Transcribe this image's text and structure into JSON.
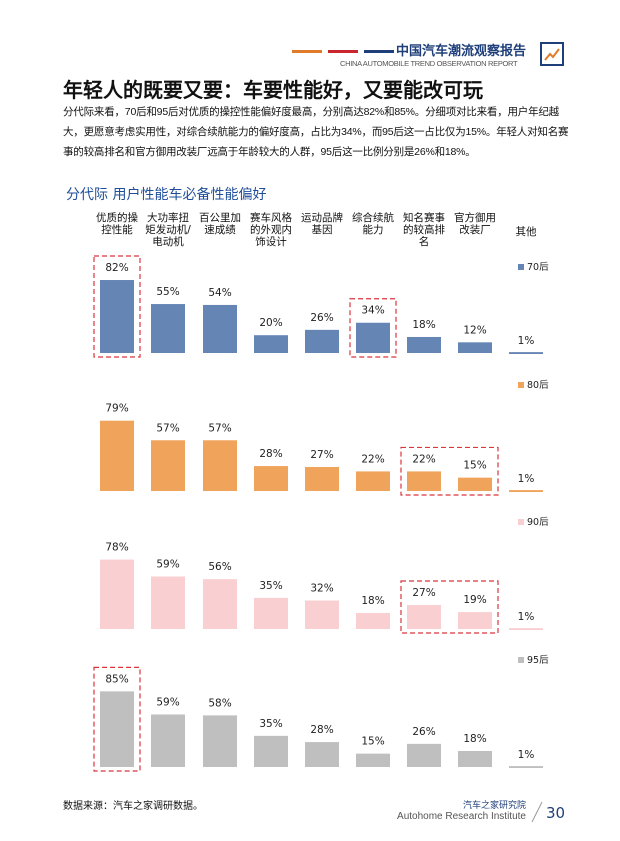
{
  "header": {
    "brand_cn": "中国汽车潮流观察报告",
    "brand_en": "CHINA AUTOMOBILE TREND OBSERVATION REPORT",
    "stripe_colors": [
      "#e07b2a",
      "#c9262e",
      "#1f3f7a"
    ]
  },
  "title": "年轻人的既要又要：车要性能好，又要能改可玩",
  "intro": "分代际来看，70后和95后对优质的操控性能偏好度最高，分别高达82%和85%。分细项对比来看，用户年纪越大，更愿意考虑实用性，对综合续航能力的偏好度高，占比为34%，而95后这一占比仅为15%。年轻人对知名赛事的较高排名和官方御用改装厂远高于年龄较大的人群，95后这一比例分别是26%和18%。",
  "subtitle": "分代际  用户性能车必备性能偏好",
  "chart_data": {
    "type": "bar",
    "categories": [
      "优质的操控性能",
      "大功率扭矩发动机/电动机",
      "百公里加速成绩",
      "赛车风格的外观内饰设计",
      "运动品牌基因",
      "综合续航能力",
      "知名赛事的较高排名",
      "官方御用改装厂",
      "其他"
    ],
    "unit": "%",
    "ylim": [
      0,
      100
    ],
    "grid": false,
    "legend": "right",
    "series": [
      {
        "name": "70后",
        "color": "#6585b5",
        "values": [
          82,
          55,
          54,
          20,
          26,
          34,
          18,
          12,
          1
        ],
        "highlighted": [
          0,
          5
        ]
      },
      {
        "name": "80后",
        "color": "#f0a35a",
        "values": [
          79,
          57,
          57,
          28,
          27,
          22,
          22,
          15,
          1
        ],
        "highlighted": [
          6,
          7
        ]
      },
      {
        "name": "90后",
        "color": "#f9cfd1",
        "values": [
          78,
          59,
          56,
          35,
          32,
          18,
          27,
          19,
          1
        ],
        "highlighted": [
          6,
          7
        ]
      },
      {
        "name": "95后",
        "color": "#bfbfbf",
        "values": [
          85,
          59,
          58,
          35,
          28,
          15,
          26,
          18,
          1
        ],
        "highlighted": [
          0
        ]
      }
    ],
    "highlight_color": "#d9363e"
  },
  "footer": {
    "source": "数据来源：汽车之家调研数据。",
    "org_cn": "汽车之家研究院",
    "org_en": "Autohome Research Institute",
    "page": "30"
  }
}
